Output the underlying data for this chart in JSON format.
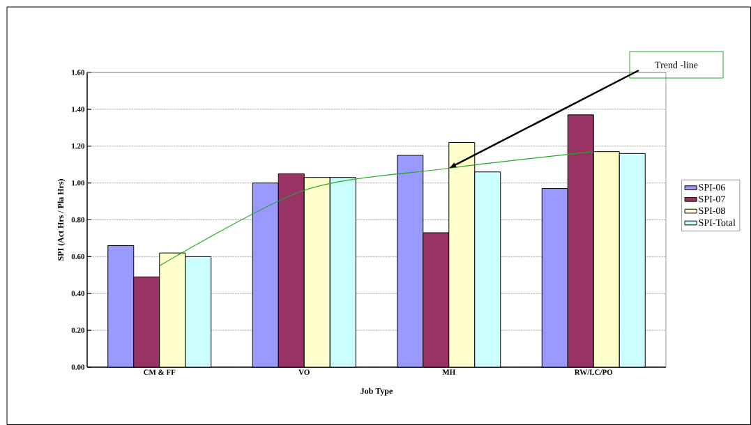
{
  "chart_data": {
    "type": "bar",
    "xlabel": "Job Type",
    "ylabel": "SPI (Act Hrs / Pla Hrs)",
    "categories": [
      "CM & FF",
      "VO",
      "MH",
      "RW/LC/PO"
    ],
    "series": [
      {
        "name": "SPI-06",
        "color": "#9999ff",
        "values": [
          0.66,
          1.0,
          1.15,
          0.97
        ]
      },
      {
        "name": "SPI-07",
        "color": "#993366",
        "values": [
          0.49,
          1.05,
          0.73,
          1.37
        ]
      },
      {
        "name": "SPI-08",
        "color": "#ffffcc",
        "values": [
          0.62,
          1.03,
          1.22,
          1.17
        ]
      },
      {
        "name": "SPI-Total",
        "color": "#ccffff",
        "values": [
          0.6,
          1.03,
          1.06,
          1.16
        ]
      },
      {
        "type": "line",
        "color": "#22aa22",
        "values": [
          0.55,
          0.96,
          1.08,
          1.17
        ]
      }
    ],
    "ylim": [
      0,
      1.6
    ],
    "yticks": [
      {
        "value": 0,
        "label": "0.00"
      },
      {
        "value": 0.2,
        "label": "0.20"
      },
      {
        "value": 0.4,
        "label": "0.40"
      },
      {
        "value": 0.6,
        "label": "0.60"
      },
      {
        "value": 0.8,
        "label": "0.80"
      },
      {
        "value": 1.0,
        "label": "1.00"
      },
      {
        "value": 1.2,
        "label": "1.20"
      },
      {
        "value": 1.4,
        "label": "1.40"
      },
      {
        "value": 1.6,
        "label": "1.60"
      }
    ],
    "grid": "y",
    "legend": "right",
    "marker": "none",
    "line_style": "solid",
    "annotations": [
      "Trend  -line"
    ]
  }
}
